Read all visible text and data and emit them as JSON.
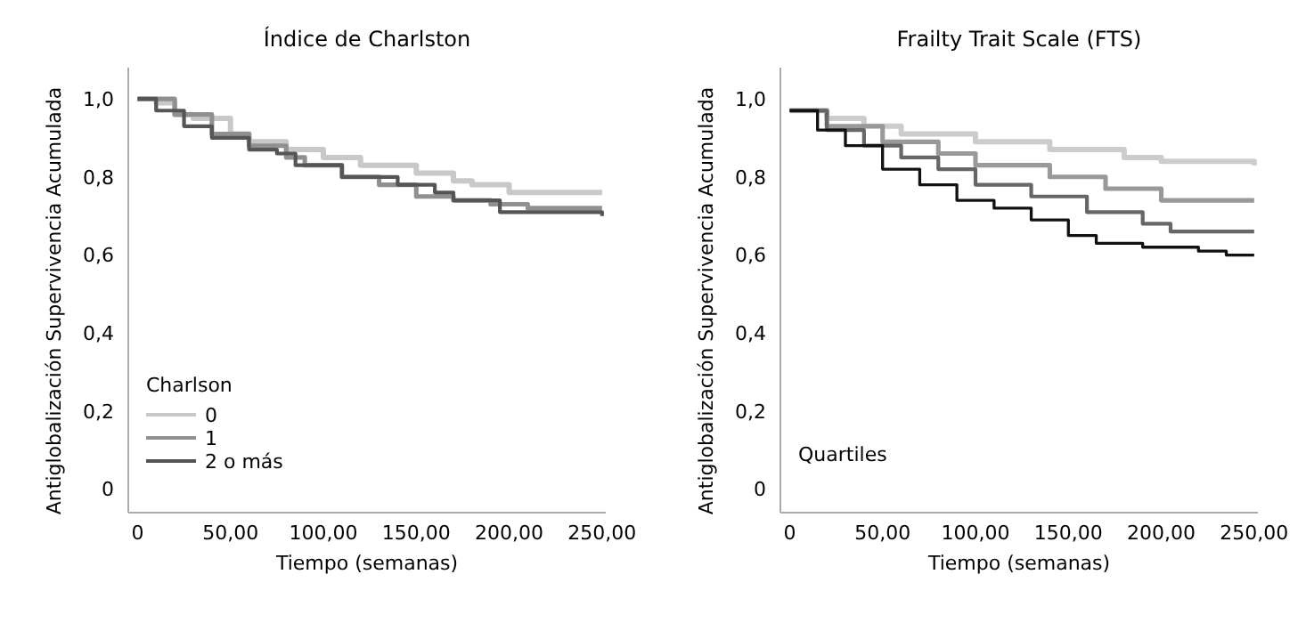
{
  "chart_data": [
    {
      "type": "step",
      "title": "Índice de Charlston",
      "xlabel": "Tiempo (semanas)",
      "ylabel": "Antiglobalización Supervivencia Acumulada",
      "legend_title": "Charlson",
      "legend": "bottom left",
      "xlim": [
        -5,
        252
      ],
      "ylim": [
        -0.06,
        1.08
      ],
      "xticks": [
        0,
        {
          "value": 50,
          "label": "50,00"
        },
        {
          "value": 100,
          "label": "100,00"
        },
        {
          "value": 150,
          "label": "150,00"
        },
        {
          "value": 200,
          "label": "200,00"
        },
        {
          "value": 250,
          "label": "250,00"
        }
      ],
      "yticks": [
        0,
        {
          "value": 0.2,
          "label": "0,2"
        },
        {
          "value": 0.4,
          "label": "0,4"
        },
        {
          "value": 0.6,
          "label": "0,6"
        },
        {
          "value": 0.8,
          "label": "0,8"
        },
        {
          "value": 1,
          "label": "1,0"
        }
      ],
      "series": [
        {
          "name": "0",
          "color": "#c8c8c8",
          "x": [
            0,
            10,
            20,
            30,
            50,
            60,
            80,
            100,
            120,
            150,
            170,
            180,
            200,
            250
          ],
          "values": [
            1.0,
            0.99,
            0.96,
            0.95,
            0.91,
            0.89,
            0.87,
            0.85,
            0.83,
            0.81,
            0.79,
            0.78,
            0.76,
            0.76
          ]
        },
        {
          "name": "1",
          "color": "#909090",
          "x": [
            0,
            20,
            40,
            60,
            80,
            90,
            110,
            130,
            150,
            170,
            190,
            210,
            250
          ],
          "values": [
            1.0,
            0.96,
            0.91,
            0.88,
            0.85,
            0.83,
            0.8,
            0.78,
            0.75,
            0.74,
            0.73,
            0.72,
            0.72
          ]
        },
        {
          "name": "2 o más",
          "color": "#555555",
          "x": [
            0,
            10,
            25,
            40,
            60,
            75,
            85,
            110,
            140,
            160,
            170,
            195,
            220,
            250
          ],
          "values": [
            1.0,
            0.97,
            0.93,
            0.9,
            0.87,
            0.86,
            0.83,
            0.8,
            0.78,
            0.76,
            0.74,
            0.71,
            0.71,
            0.7
          ]
        }
      ]
    },
    {
      "type": "step",
      "title": "Frailty Trait Scale (FTS)",
      "xlabel": "Tiempo (semanas)",
      "ylabel": "Antiglobalización Supervivencia Acumulada",
      "legend_title": "Quartiles",
      "legend": "bottom left",
      "xlim": [
        -5,
        252
      ],
      "ylim": [
        -0.06,
        1.08
      ],
      "xticks": [
        0,
        {
          "value": 50,
          "label": "50,00"
        },
        {
          "value": 100,
          "label": "100,00"
        },
        {
          "value": 150,
          "label": "150,00"
        },
        {
          "value": 200,
          "label": "200,00"
        },
        {
          "value": 250,
          "label": "250,00"
        }
      ],
      "yticks": [
        0,
        {
          "value": 0.2,
          "label": "0,2"
        },
        {
          "value": 0.4,
          "label": "0,4"
        },
        {
          "value": 0.6,
          "label": "0,6"
        },
        {
          "value": 0.8,
          "label": "0,8"
        },
        {
          "value": 1,
          "label": "1,0"
        }
      ],
      "series": [
        {
          "color": "#cccccc",
          "x": [
            0,
            20,
            40,
            60,
            100,
            140,
            180,
            200,
            250
          ],
          "values": [
            0.97,
            0.95,
            0.93,
            0.91,
            0.89,
            0.87,
            0.85,
            0.84,
            0.83
          ]
        },
        {
          "color": "#999999",
          "x": [
            0,
            20,
            50,
            80,
            100,
            140,
            170,
            200,
            250
          ],
          "values": [
            0.97,
            0.93,
            0.89,
            0.86,
            0.83,
            0.8,
            0.77,
            0.74,
            0.74
          ]
        },
        {
          "color": "#666666",
          "x": [
            0,
            20,
            40,
            60,
            80,
            100,
            130,
            160,
            190,
            205,
            250
          ],
          "values": [
            0.97,
            0.92,
            0.88,
            0.85,
            0.82,
            0.78,
            0.75,
            0.71,
            0.68,
            0.66,
            0.66
          ]
        },
        {
          "color": "#111111",
          "x": [
            0,
            15,
            30,
            50,
            70,
            90,
            110,
            130,
            150,
            165,
            190,
            220,
            235,
            250
          ],
          "values": [
            0.97,
            0.92,
            0.88,
            0.82,
            0.78,
            0.74,
            0.72,
            0.69,
            0.65,
            0.63,
            0.62,
            0.61,
            0.6,
            0.6
          ]
        }
      ]
    }
  ]
}
